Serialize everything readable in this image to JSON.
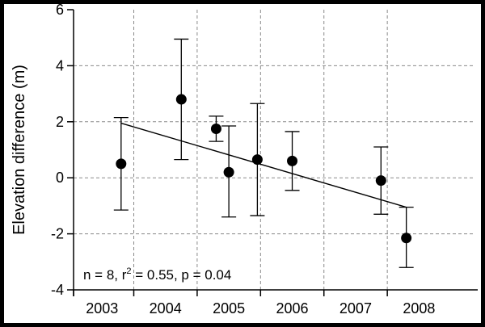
{
  "chart_data": {
    "type": "scatter",
    "ylabel": "Elevation difference (m)",
    "xlabel": "",
    "ylim": [
      -4,
      6
    ],
    "xlim": [
      2002.05,
      2008.35
    ],
    "y_ticks": [
      -4,
      -2,
      0,
      2,
      4,
      6
    ],
    "x_tick_labels": [
      {
        "label": "2003",
        "x": 2002.5
      },
      {
        "label": "2004",
        "x": 2003.5
      },
      {
        "label": "2005",
        "x": 2004.5
      },
      {
        "label": "2006",
        "x": 2005.5
      },
      {
        "label": "2007",
        "x": 2006.5
      },
      {
        "label": "2008",
        "x": 2007.5
      }
    ],
    "x_grid": [
      2003,
      2004,
      2005,
      2006,
      2007
    ],
    "grid": true,
    "points": [
      {
        "x": 2002.8,
        "y": 0.5,
        "err_low": -1.15,
        "err_high": 2.15
      },
      {
        "x": 2003.75,
        "y": 2.8,
        "err_low": 0.65,
        "err_high": 4.95
      },
      {
        "x": 2004.3,
        "y": 1.75,
        "err_low": 1.3,
        "err_high": 2.2
      },
      {
        "x": 2004.5,
        "y": 0.2,
        "err_low": -1.4,
        "err_high": 1.85
      },
      {
        "x": 2004.95,
        "y": 0.65,
        "err_low": -1.35,
        "err_high": 2.65
      },
      {
        "x": 2005.5,
        "y": 0.6,
        "err_low": -0.45,
        "err_high": 1.65
      },
      {
        "x": 2006.9,
        "y": -0.1,
        "err_low": -1.3,
        "err_high": 1.1
      },
      {
        "x": 2007.3,
        "y": -2.15,
        "err_low": -3.2,
        "err_high": -1.05
      }
    ],
    "trend_line": {
      "x": [
        2002.8,
        2007.3
      ],
      "y": [
        1.95,
        -1.05
      ]
    },
    "annotation": {
      "prefix": "n = 8, r",
      "superscript": "2",
      "suffix": " = 0.55, p = 0.04"
    }
  },
  "colors": {
    "ink": "#000000",
    "grid": "#8a8a8a",
    "background": "#ffffff"
  }
}
